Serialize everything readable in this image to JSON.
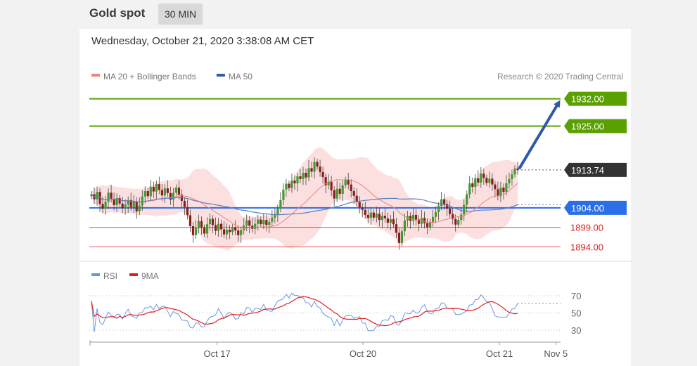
{
  "header": {
    "title": "Gold spot",
    "timeframe": "30 MIN"
  },
  "datetime": "Wednesday, October 21, 2020 3:38:08 AM CET",
  "chart_data": [
    {
      "type": "candlestick",
      "legend": [
        {
          "label": "MA 20 + Bollinger Bands",
          "color": "#f08080"
        },
        {
          "label": "MA 50",
          "color": "#2f5aa8"
        }
      ],
      "copyright": "Research © 2020 Trading Central",
      "ylim": [
        1891,
        1935
      ],
      "current_price": {
        "value": 1913.74,
        "label": "1913.74",
        "color": "#333333"
      },
      "levels": [
        {
          "value": 1932.0,
          "label": "1932.00",
          "kind": "resistance",
          "color": "#5aa000"
        },
        {
          "value": 1925.0,
          "label": "1925.00",
          "kind": "resistance",
          "color": "#5aa000"
        },
        {
          "value": 1904.0,
          "label": "1904.00",
          "kind": "pivot",
          "color": "#2a6ee8"
        },
        {
          "value": 1899.0,
          "label": "1899.00",
          "kind": "support",
          "color": "#e02020"
        },
        {
          "value": 1894.0,
          "label": "1894.00",
          "kind": "support",
          "color": "#e02020"
        }
      ],
      "arrow": {
        "from": 1914.0,
        "to": 1932.0,
        "color": "#2f5aa8"
      },
      "close": [
        1907.5,
        1906.2,
        1908.1,
        1905.0,
        1903.8,
        1905.6,
        1907.9,
        1906.3,
        1904.7,
        1906.5,
        1905.1,
        1903.9,
        1904.8,
        1906.0,
        1904.2,
        1905.7,
        1903.1,
        1904.6,
        1906.9,
        1908.3,
        1907.0,
        1909.4,
        1908.2,
        1910.1,
        1908.6,
        1907.2,
        1909.0,
        1907.8,
        1906.1,
        1907.9,
        1909.2,
        1907.4,
        1905.8,
        1904.2,
        1902.1,
        1899.3,
        1897.0,
        1898.8,
        1900.6,
        1898.9,
        1897.4,
        1899.8,
        1901.2,
        1899.6,
        1898.1,
        1899.9,
        1898.5,
        1897.2,
        1898.4,
        1897.8,
        1899.0,
        1898.2,
        1897.0,
        1898.3,
        1899.5,
        1900.8,
        1899.4,
        1898.6,
        1899.9,
        1901.0,
        1899.8,
        1900.9,
        1899.6,
        1900.4,
        1901.5,
        1902.3,
        1903.8,
        1906.0,
        1908.7,
        1910.2,
        1909.1,
        1911.0,
        1910.3,
        1912.1,
        1911.4,
        1913.0,
        1911.8,
        1914.2,
        1913.3,
        1915.8,
        1914.6,
        1913.2,
        1911.9,
        1909.8,
        1910.7,
        1908.5,
        1906.4,
        1908.9,
        1907.6,
        1909.8,
        1911.2,
        1910.0,
        1908.3,
        1907.1,
        1905.5,
        1904.1,
        1903.5,
        1902.2,
        1901.4,
        1902.8,
        1901.5,
        1902.5,
        1900.9,
        1902.0,
        1901.3,
        1900.2,
        1901.1,
        1899.8,
        1897.6,
        1895.0,
        1898.0,
        1900.8,
        1901.9,
        1900.7,
        1902.2,
        1901.0,
        1899.9,
        1901.4,
        1900.1,
        1899.0,
        1900.4,
        1901.7,
        1902.9,
        1904.5,
        1906.2,
        1905.0,
        1903.8,
        1902.4,
        1901.1,
        1899.7,
        1900.9,
        1902.3,
        1904.8,
        1907.5,
        1910.3,
        1909.4,
        1911.6,
        1910.5,
        1912.8,
        1911.7,
        1910.4,
        1911.5,
        1910.0,
        1908.8,
        1907.0,
        1909.2,
        1908.1,
        1910.3,
        1911.4,
        1912.6,
        1914.1,
        1913.74
      ]
    },
    {
      "type": "line",
      "title": "",
      "legend": [
        {
          "label": "RSI",
          "color": "#6e96e0"
        },
        {
          "label": "9MA",
          "color": "#e02020"
        }
      ],
      "ylim": [
        20,
        80
      ],
      "ticks": [
        "70",
        "50",
        "30"
      ],
      "xticks": [
        {
          "label": "Oct 17",
          "frac": 0.27
        },
        {
          "label": "Oct 20",
          "frac": 0.58
        },
        {
          "label": "Oct 21",
          "frac": 0.87
        },
        {
          "label": "Nov 5",
          "frac": 0.99
        }
      ],
      "current_rsi": 61
    }
  ]
}
